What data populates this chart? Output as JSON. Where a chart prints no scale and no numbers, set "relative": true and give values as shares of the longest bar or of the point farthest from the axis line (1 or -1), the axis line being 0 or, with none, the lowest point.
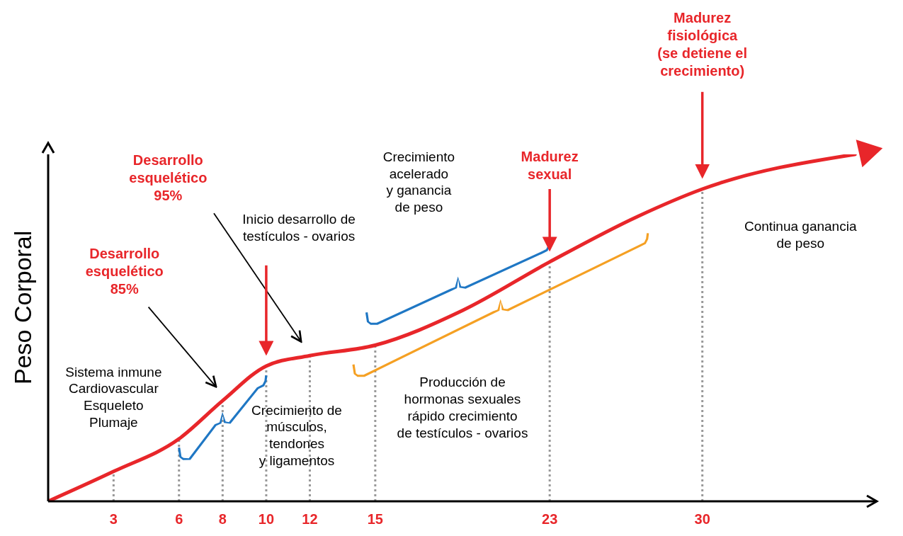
{
  "chart_data": {
    "type": "line",
    "relative": true,
    "ylabel": "Peso Corporal",
    "x": [
      0,
      3,
      6,
      8,
      10,
      12,
      15,
      19,
      23,
      27,
      30,
      37
    ],
    "series": [
      {
        "color": "#e8262a",
        "values": [
          0,
          0.086,
          0.18,
          0.29,
          0.39,
          0.42,
          0.45,
          0.55,
          0.69,
          0.82,
          0.9,
          1
        ]
      }
    ],
    "xlim": [
      0,
      38
    ],
    "xticks": [
      3,
      6,
      8,
      10,
      12,
      15,
      23,
      30
    ],
    "ref_lines": [
      {
        "axis": "x",
        "value": 3,
        "color": "#999999",
        "line_style": "dotted"
      },
      {
        "axis": "x",
        "value": 6,
        "color": "#999999",
        "line_style": "dotted"
      },
      {
        "axis": "x",
        "value": 8,
        "color": "#999999",
        "line_style": "dotted"
      },
      {
        "axis": "x",
        "value": 10,
        "color": "#999999",
        "line_style": "dotted"
      },
      {
        "axis": "x",
        "value": 12,
        "color": "#999999",
        "line_style": "dotted"
      },
      {
        "axis": "x",
        "value": 15,
        "color": "#999999",
        "line_style": "dotted"
      },
      {
        "axis": "x",
        "value": 23,
        "color": "#999999",
        "line_style": "dotted"
      },
      {
        "axis": "x",
        "value": 30,
        "color": "#999999",
        "line_style": "dotted"
      }
    ],
    "annotations": [
      "Desarrollo\nesquelético\n85%",
      "Desarrollo\nesquelético\n95%",
      "Inicio desarrollo de\ntestículos - ovarios",
      "Madurez\nsexual",
      "Madurez\nfisiológica\n(se detiene el\ncrecimiento)",
      "Sistema inmune\nCardiovascular\nEsqueleto\nPlumaje",
      "Crecimiento de\nmúsculos,\ntendones\ny ligamentos",
      "Crecimiento\nacelerado\ny ganancia\nde peso",
      "Producción de\nhormonas sexuales\nrápido crecimiento\nde testículos - ovarios",
      "Continua ganancia\nde peso"
    ],
    "grid": false,
    "legend": false,
    "marker": "none",
    "line_style": "solid"
  }
}
